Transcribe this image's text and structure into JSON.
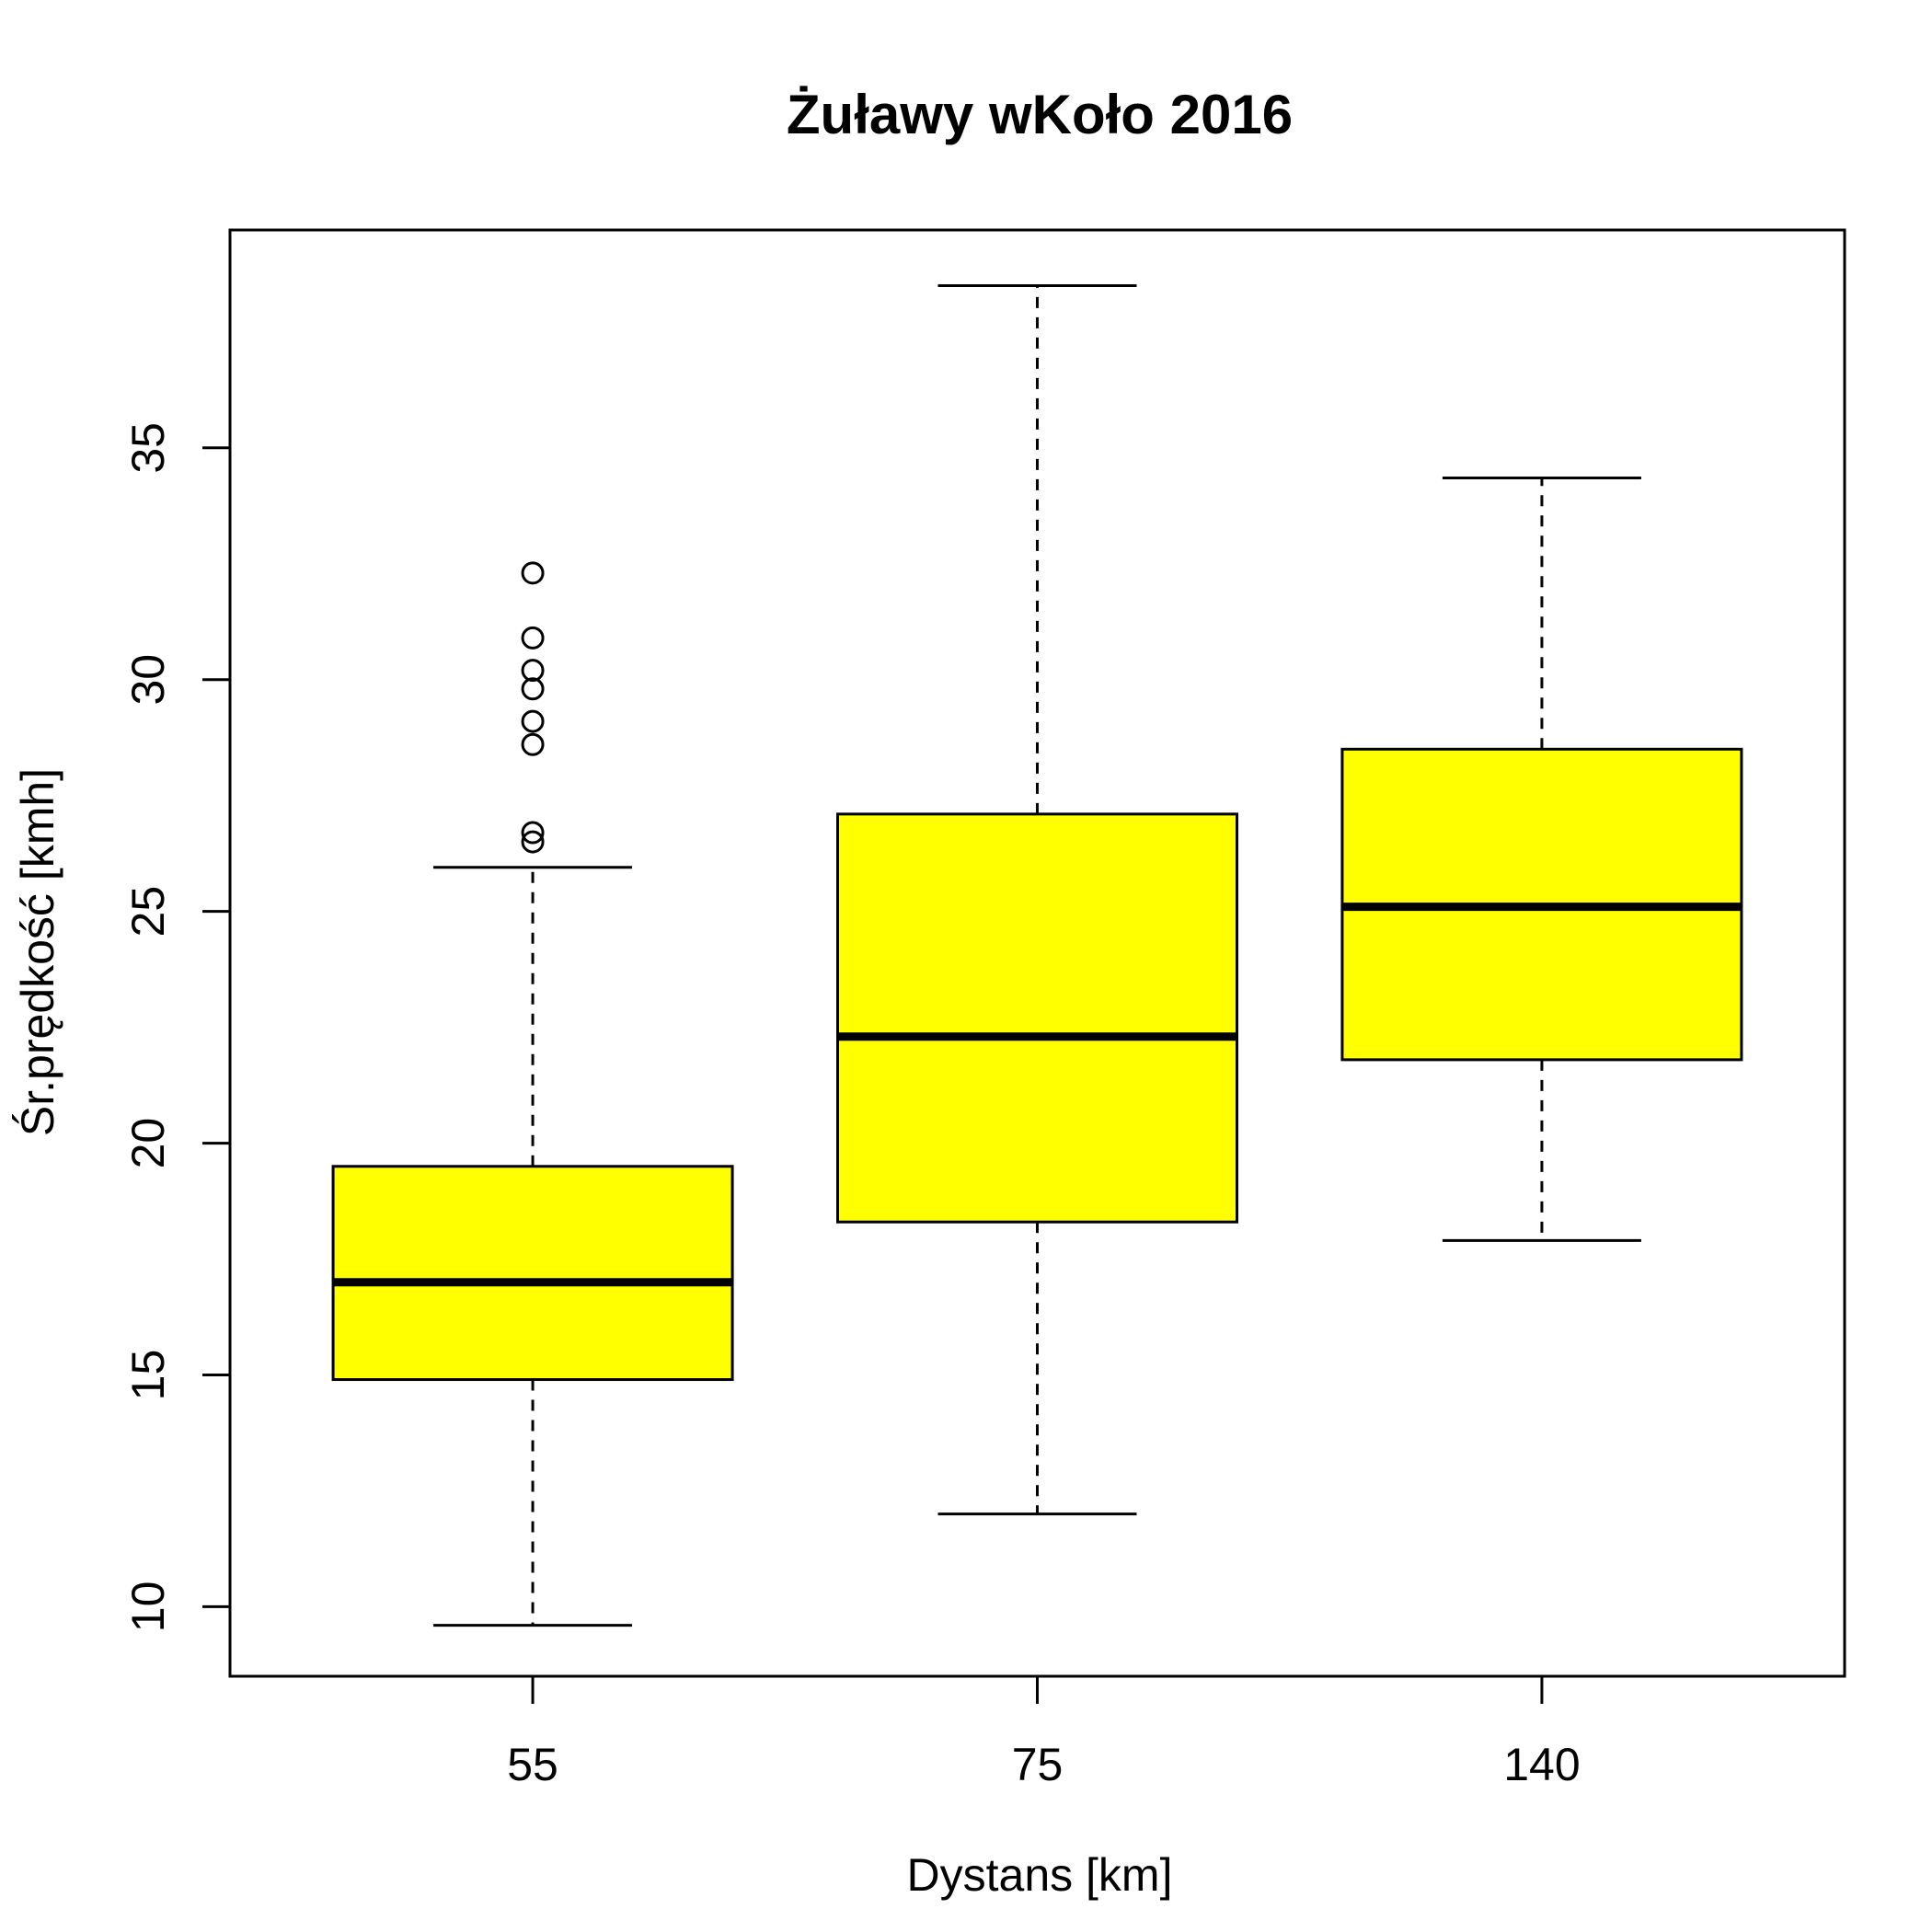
{
  "chart_data": {
    "type": "box",
    "title": "Żuławy wKoło 2016",
    "xlabel": "Dystans [km]",
    "ylabel": "Śr.prędkość [kmh]",
    "categories": [
      "55",
      "75",
      "140"
    ],
    "y_ticks": [
      10,
      15,
      20,
      25,
      30,
      35
    ],
    "ylim": [
      8.5,
      39.7
    ],
    "grid": false,
    "legend": "none",
    "box_fill": "#ffff00",
    "boxes": [
      {
        "category": "55",
        "whisker_low": 9.6,
        "q1": 14.9,
        "median": 17.0,
        "q3": 19.5,
        "whisker_high": 25.95,
        "outliers": [
          26.5,
          26.7,
          28.6,
          29.1,
          29.8,
          30.2,
          30.9,
          32.3
        ]
      },
      {
        "category": "75",
        "whisker_low": 12.0,
        "q1": 18.3,
        "median": 22.3,
        "q3": 27.1,
        "whisker_high": 38.5,
        "outliers": []
      },
      {
        "category": "140",
        "whisker_low": 17.9,
        "q1": 21.8,
        "median": 25.1,
        "q3": 28.5,
        "whisker_high": 34.35,
        "outliers": []
      }
    ]
  }
}
